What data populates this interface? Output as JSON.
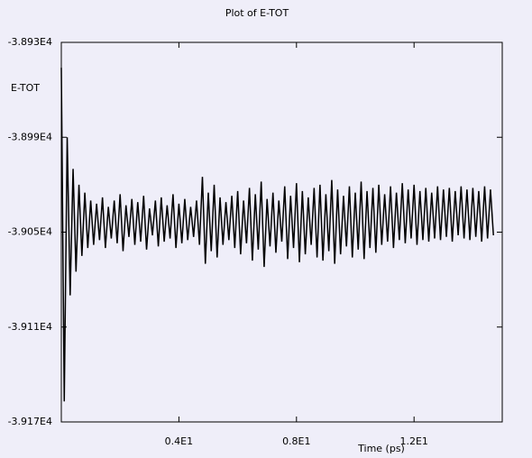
{
  "chart_data": {
    "type": "line",
    "title": "Plot of E-TOT",
    "y_label": "E-TOT",
    "x_label": "Time (ps)",
    "xlim": [
      0,
      15
    ],
    "ylim": [
      -39170,
      -38930
    ],
    "xticks": [
      {
        "value": 4,
        "label": "0.4E1"
      },
      {
        "value": 8,
        "label": "0.8E1"
      },
      {
        "value": 12,
        "label": "1.2E1"
      }
    ],
    "yticks": [
      {
        "value": -38930,
        "label": "-3.893E4"
      },
      {
        "value": -38990,
        "label": "-3.899E4"
      },
      {
        "value": -39050,
        "label": "-3.905E4"
      },
      {
        "value": -39110,
        "label": "-3.911E4"
      },
      {
        "value": -39170,
        "label": "-3.917E4"
      }
    ],
    "color": "#000000",
    "x": [
      0,
      0.1,
      0.2,
      0.3,
      0.4,
      0.5,
      0.6,
      0.7,
      0.8,
      0.9,
      1,
      1.1,
      1.2,
      1.3,
      1.4,
      1.5,
      1.6,
      1.7,
      1.8,
      1.9,
      2,
      2.1,
      2.2,
      2.3,
      2.4,
      2.5,
      2.6,
      2.7,
      2.8,
      2.9,
      3,
      3.1,
      3.2,
      3.3,
      3.4,
      3.5,
      3.6,
      3.7,
      3.8,
      3.9,
      4,
      4.1,
      4.2,
      4.3,
      4.4,
      4.5,
      4.6,
      4.7,
      4.8,
      4.9,
      5,
      5.1,
      5.2,
      5.3,
      5.4,
      5.5,
      5.6,
      5.7,
      5.8,
      5.9,
      6,
      6.1,
      6.2,
      6.3,
      6.4,
      6.5,
      6.6,
      6.7,
      6.8,
      6.9,
      7,
      7.1,
      7.2,
      7.3,
      7.4,
      7.5,
      7.6,
      7.7,
      7.8,
      7.9,
      8,
      8.1,
      8.2,
      8.3,
      8.4,
      8.5,
      8.6,
      8.7,
      8.8,
      8.9,
      9,
      9.1,
      9.2,
      9.3,
      9.4,
      9.5,
      9.6,
      9.7,
      9.8,
      9.9,
      10,
      10.1,
      10.2,
      10.3,
      10.4,
      10.5,
      10.6,
      10.7,
      10.8,
      10.9,
      11,
      11.1,
      11.2,
      11.3,
      11.4,
      11.5,
      11.6,
      11.7,
      11.8,
      11.9,
      12,
      12.1,
      12.2,
      12.3,
      12.4,
      12.5,
      12.6,
      12.7,
      12.8,
      12.9,
      13,
      13.1,
      13.2,
      13.3,
      13.4,
      13.5,
      13.6,
      13.7,
      13.8,
      13.9,
      14,
      14.1,
      14.2,
      14.3,
      14.4,
      14.5,
      14.6,
      14.7
    ],
    "values": [
      -38946,
      -39157,
      -38990,
      -39090,
      -39010,
      -39075,
      -39020,
      -39065,
      -39025,
      -39060,
      -39030,
      -39058,
      -39032,
      -39055,
      -39028,
      -39060,
      -39034,
      -39054,
      -39030,
      -39057,
      -39026,
      -39062,
      -39033,
      -39053,
      -39029,
      -39058,
      -39031,
      -39056,
      -39027,
      -39061,
      -39035,
      -39052,
      -39030,
      -39059,
      -39028,
      -39056,
      -39033,
      -39054,
      -39026,
      -39060,
      -39032,
      -39057,
      -39029,
      -39055,
      -39034,
      -39053,
      -39030,
      -39058,
      -39015,
      -39070,
      -39025,
      -39062,
      -39020,
      -39066,
      -39028,
      -39058,
      -39031,
      -39055,
      -39027,
      -39060,
      -39024,
      -39064,
      -39030,
      -39057,
      -39022,
      -39068,
      -39026,
      -39061,
      -39018,
      -39072,
      -39029,
      -39059,
      -39025,
      -39063,
      -39030,
      -39056,
      -39021,
      -39067,
      -39027,
      -39060,
      -39019,
      -39069,
      -39024,
      -39064,
      -39028,
      -39058,
      -39022,
      -39066,
      -39020,
      -39068,
      -39026,
      -39062,
      -39017,
      -39070,
      -39023,
      -39064,
      -39027,
      -39059,
      -39021,
      -39066,
      -39025,
      -39061,
      -39018,
      -39067,
      -39024,
      -39060,
      -39022,
      -39063,
      -39020,
      -39058,
      -39026,
      -39056,
      -39021,
      -39060,
      -39025,
      -39055,
      -39019,
      -39057,
      -39023,
      -39054,
      -39020,
      -39058,
      -39024,
      -39055,
      -39022,
      -39056,
      -39025,
      -39054,
      -39021,
      -39055,
      -39023,
      -39053,
      -39022,
      -39056,
      -39024,
      -39052,
      -39021,
      -39054,
      -39023,
      -39055,
      -39022,
      -39053,
      -39024,
      -39056,
      -39021,
      -39054,
      -39023,
      -39052
    ]
  }
}
